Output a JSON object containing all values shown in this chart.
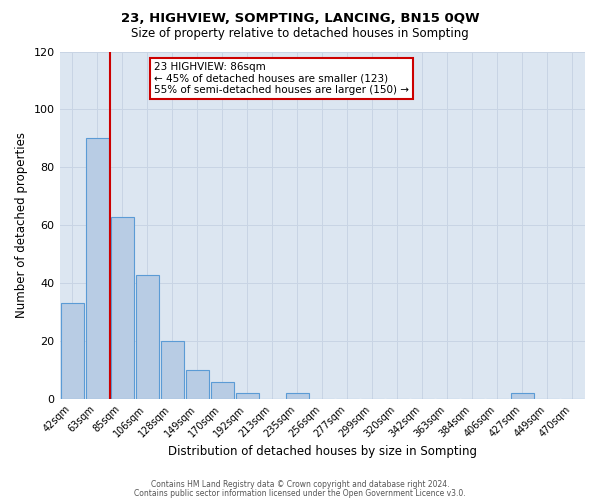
{
  "title": "23, HIGHVIEW, SOMPTING, LANCING, BN15 0QW",
  "subtitle": "Size of property relative to detached houses in Sompting",
  "xlabel": "Distribution of detached houses by size in Sompting",
  "ylabel": "Number of detached properties",
  "bin_labels": [
    "42sqm",
    "63sqm",
    "85sqm",
    "106sqm",
    "128sqm",
    "149sqm",
    "170sqm",
    "192sqm",
    "213sqm",
    "235sqm",
    "256sqm",
    "277sqm",
    "299sqm",
    "320sqm",
    "342sqm",
    "363sqm",
    "384sqm",
    "406sqm",
    "427sqm",
    "449sqm",
    "470sqm"
  ],
  "bin_values": [
    33,
    90,
    63,
    43,
    20,
    10,
    6,
    2,
    0,
    2,
    0,
    0,
    0,
    0,
    0,
    0,
    0,
    0,
    2,
    0,
    0
  ],
  "bar_color": "#b8cce4",
  "bar_edge_color": "#5b9bd5",
  "grid_color": "#c8d4e4",
  "background_color": "#dce6f1",
  "annotation_line1": "23 HIGHVIEW: 86sqm",
  "annotation_line2": "← 45% of detached houses are smaller (123)",
  "annotation_line3": "55% of semi-detached houses are larger (150) →",
  "vline_color": "#cc0000",
  "ylim": [
    0,
    120
  ],
  "yticks": [
    0,
    20,
    40,
    60,
    80,
    100,
    120
  ],
  "footnote1": "Contains HM Land Registry data © Crown copyright and database right 2024.",
  "footnote2": "Contains public sector information licensed under the Open Government Licence v3.0."
}
